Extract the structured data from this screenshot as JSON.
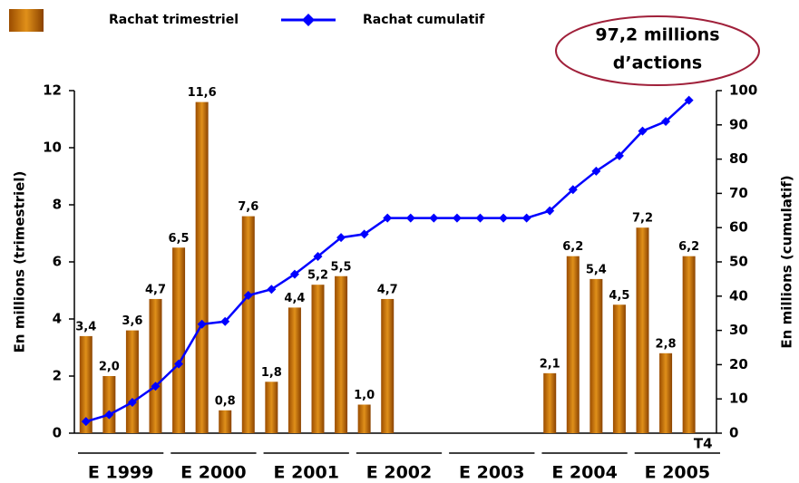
{
  "chart_data": {
    "type": "bar_line",
    "legend": [
      "Rachat trimestriel",
      "Rachat cumulatif"
    ],
    "annotation": [
      "97,2 millions",
      "d’actions"
    ],
    "ylabel": "En millions (trimestriel)",
    "y2label": "En millions (cumulatif)",
    "categories": [
      null,
      null,
      null,
      null,
      null,
      null,
      null,
      null,
      null,
      null,
      null,
      null,
      null,
      null,
      null,
      null,
      null,
      null,
      null,
      null,
      null,
      null,
      null,
      null,
      null,
      null,
      null,
      "T4"
    ],
    "groups": [
      {
        "label": "E 1999",
        "size": 4
      },
      {
        "label": "E 2000",
        "size": 4
      },
      {
        "label": "E 2001",
        "size": 4
      },
      {
        "label": "E 2002",
        "size": 4
      },
      {
        "label": "E 2003",
        "size": 4
      },
      {
        "label": "E 2004",
        "size": 4
      },
      {
        "label": "E 2005",
        "size": 4
      }
    ],
    "series": [
      {
        "name": "Rachat trimestriel",
        "color": "#e0901a",
        "values": [
          3.4,
          2.0,
          3.6,
          4.7,
          6.5,
          11.6,
          0.8,
          7.6,
          1.8,
          4.4,
          5.2,
          5.5,
          1.0,
          4.7,
          null,
          null,
          null,
          null,
          null,
          null,
          2.1,
          6.2,
          5.4,
          4.5,
          7.2,
          2.8,
          6.2,
          null
        ],
        "value_labels": [
          "3,4",
          "2,0",
          "3,6",
          "4,7",
          "6,5",
          "11,6",
          "0,8",
          "7,6",
          "1,8",
          "4,4",
          "5,2",
          "5,5",
          "1,0",
          "4,7",
          null,
          null,
          null,
          null,
          null,
          null,
          "2,1",
          "6,2",
          "5,4",
          "4,5",
          "7,2",
          "2,8",
          "6,2",
          null
        ]
      },
      {
        "name": "Rachat cumulatif",
        "color": "#0000ff",
        "axis": "y2",
        "values": [
          3.4,
          5.4,
          9.0,
          13.7,
          20.2,
          31.8,
          32.6,
          40.2,
          42.0,
          46.4,
          51.6,
          57.1,
          58.1,
          62.8,
          62.8,
          62.8,
          62.8,
          62.8,
          62.8,
          62.8,
          64.9,
          71.1,
          76.5,
          81.0,
          88.2,
          91.0,
          97.2,
          null
        ]
      }
    ],
    "ylim": [
      0,
      12
    ],
    "yticks": [
      0,
      2,
      4,
      6,
      8,
      10,
      12
    ],
    "y2lim": [
      0,
      100
    ],
    "y2ticks": [
      0,
      10,
      20,
      30,
      40,
      50,
      60,
      70,
      80,
      90,
      100
    ]
  }
}
